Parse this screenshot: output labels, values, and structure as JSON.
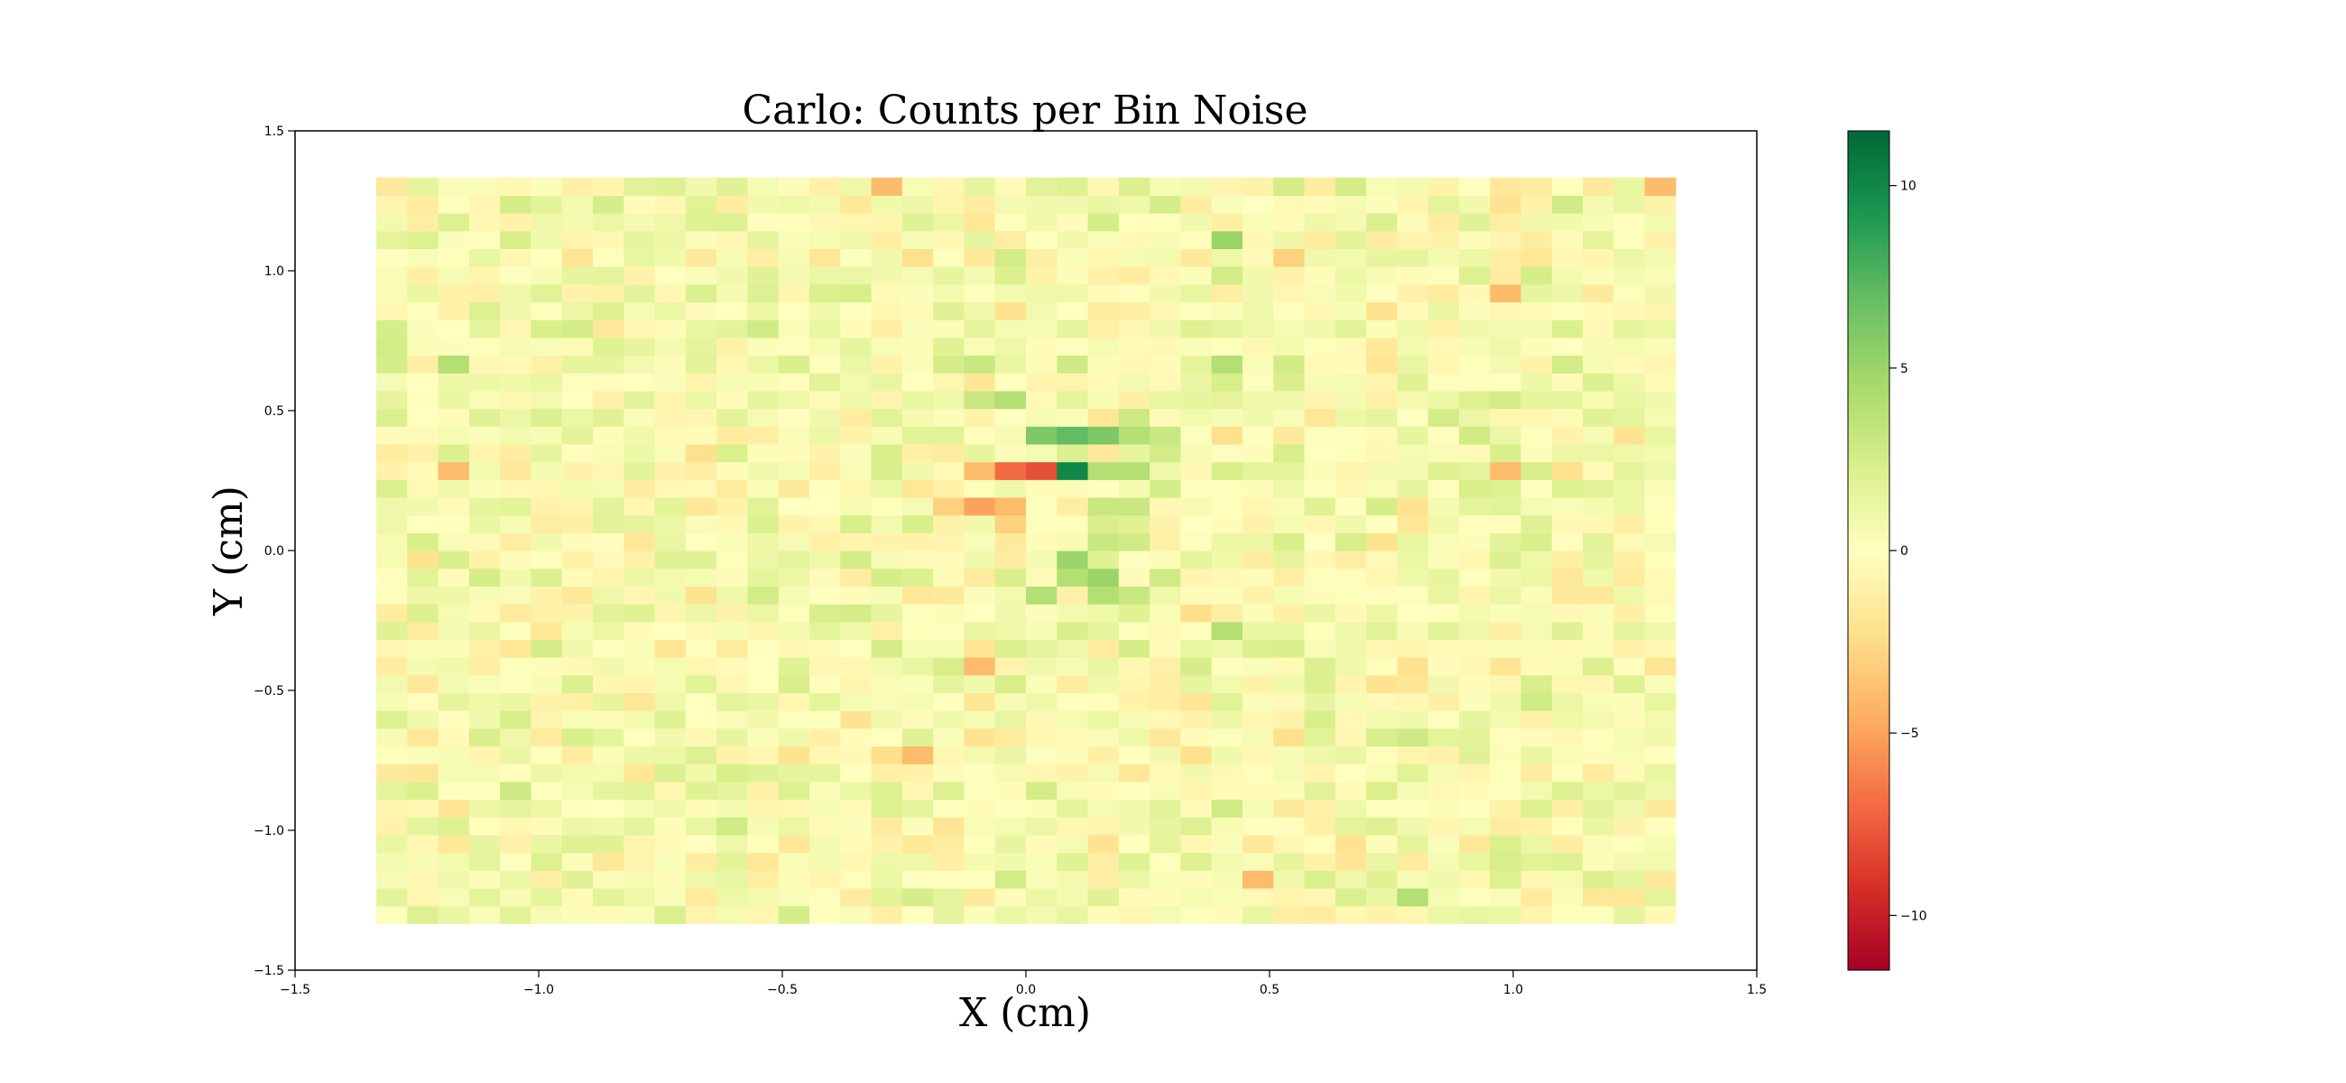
{
  "chart_data": {
    "type": "heatmap",
    "title": "Carlo: Counts per Bin Noise",
    "xlabel": "X (cm)",
    "ylabel": "Y (cm)",
    "xlim": [
      -1.5,
      1.5
    ],
    "ylim": [
      -1.5,
      1.5
    ],
    "x_ticks": [
      -1.5,
      -1.0,
      -0.5,
      0.0,
      0.5,
      1.0,
      1.5
    ],
    "x_tick_labels": [
      "−1.5",
      "−1.0",
      "−0.5",
      "0.0",
      "0.5",
      "1.0",
      "1.5"
    ],
    "y_ticks": [
      -1.5,
      -1.0,
      -0.5,
      0.0,
      0.5,
      1.0,
      1.5
    ],
    "y_tick_labels": [
      "−1.5",
      "−1.0",
      "−0.5",
      "0.0",
      "0.5",
      "1.0",
      "1.5"
    ],
    "grid": false,
    "colormap": "RdYlGn",
    "colorbar": {
      "range": [
        -11.5,
        11.5
      ],
      "ticks": [
        -10,
        -5,
        0,
        5,
        10
      ],
      "tick_labels": [
        "−10",
        "−5",
        "0",
        "5",
        "10"
      ],
      "colors": [
        "#a50026",
        "#d73027",
        "#f46d43",
        "#fdae61",
        "#fee08b",
        "#ffffbf",
        "#d9ef8b",
        "#a6d96a",
        "#66bd63",
        "#1a9850",
        "#006837"
      ]
    },
    "grid_extent": {
      "x": [
        -1.3333,
        1.3333
      ],
      "y": [
        -1.3333,
        1.3333
      ]
    },
    "bins": {
      "nx": 42,
      "ny": 42
    },
    "background_noise": {
      "min": -3,
      "max": 3
    },
    "cells": [
      {
        "x": -0.0317,
        "y": 0.254,
        "value": -11
      },
      {
        "x": 0.0317,
        "y": 0.254,
        "value": -8
      },
      {
        "x": -0.0952,
        "y": 0.254,
        "value": -5
      },
      {
        "x": -0.0952,
        "y": 0.19,
        "value": -5
      },
      {
        "x": -0.0317,
        "y": 0.19,
        "value": -4
      },
      {
        "x": -0.0952,
        "y": 0.317,
        "value": -4
      },
      {
        "x": -0.0317,
        "y": 0.317,
        "value": -7
      },
      {
        "x": 0.0317,
        "y": 0.381,
        "value": 8
      },
      {
        "x": 0.0952,
        "y": 0.381,
        "value": 11
      },
      {
        "x": 0.0952,
        "y": 0.317,
        "value": 10
      },
      {
        "x": 0.0317,
        "y": 0.444,
        "value": 6
      },
      {
        "x": 0.0952,
        "y": 0.444,
        "value": 7
      },
      {
        "x": 0.1587,
        "y": 0.444,
        "value": 6
      },
      {
        "x": 0.1587,
        "y": 0.381,
        "value": 6
      },
      {
        "x": 0.2222,
        "y": 0.381,
        "value": 4
      },
      {
        "x": 0.2857,
        "y": 0.381,
        "value": 3
      },
      {
        "x": 0.1587,
        "y": 0.317,
        "value": 4
      },
      {
        "x": 0.2222,
        "y": 0.317,
        "value": 4
      },
      {
        "x": -0.0317,
        "y": 0.508,
        "value": 4
      },
      {
        "x": -0.0317,
        "y": 0.571,
        "value": 4
      },
      {
        "x": -0.0952,
        "y": 0.508,
        "value": 3
      },
      {
        "x": -0.0952,
        "y": 0.635,
        "value": 3
      },
      {
        "x": 0.0952,
        "y": -0.0317,
        "value": 5
      },
      {
        "x": 0.1587,
        "y": -0.0952,
        "value": 5
      },
      {
        "x": 0.0952,
        "y": -0.0952,
        "value": 4
      },
      {
        "x": 0.0317,
        "y": -0.1587,
        "value": 4
      },
      {
        "x": 0.1587,
        "y": -0.1587,
        "value": 4
      },
      {
        "x": 0.2222,
        "y": -0.1587,
        "value": 3
      },
      {
        "x": 0.1587,
        "y": 0.0317,
        "value": 3
      },
      {
        "x": 0.1587,
        "y": 0.127,
        "value": 3
      },
      {
        "x": 0.2222,
        "y": 0.127,
        "value": 3
      },
      {
        "x": -0.0317,
        "y": 0.0952,
        "value": -3
      },
      {
        "x": -0.1587,
        "y": 0.127,
        "value": -3
      },
      {
        "x": 0.4444,
        "y": -0.254,
        "value": 4
      },
      {
        "x": 0.4444,
        "y": 0.698,
        "value": 4
      },
      {
        "x": 0.4444,
        "y": 1.111,
        "value": 5
      },
      {
        "x": 0.5714,
        "y": 1.0476,
        "value": -3
      },
      {
        "x": -0.0952,
        "y": -0.4444,
        "value": -4
      },
      {
        "x": 1.0,
        "y": 0.952,
        "value": -4
      },
      {
        "x": 1.3015,
        "y": 1.3015,
        "value": -4
      },
      {
        "x": -0.254,
        "y": 1.3015,
        "value": -4
      },
      {
        "x": -1.2063,
        "y": 0.698,
        "value": 4
      },
      {
        "x": -1.2063,
        "y": 0.317,
        "value": -4
      },
      {
        "x": 0.5079,
        "y": -1.1746,
        "value": -4
      },
      {
        "x": -0.2222,
        "y": -0.746,
        "value": -4
      },
      {
        "x": 0.9683,
        "y": 0.254,
        "value": -4
      },
      {
        "x": 0.7937,
        "y": -1.2381,
        "value": 4
      }
    ]
  }
}
